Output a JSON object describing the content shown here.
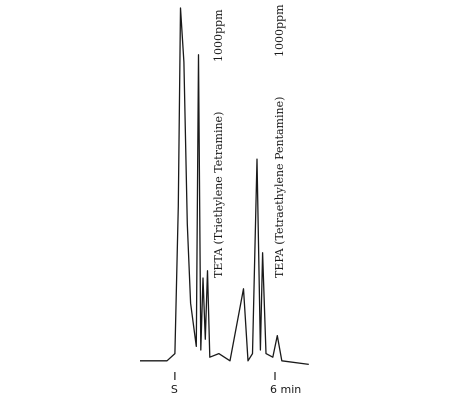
{
  "chart_data": {
    "type": "line",
    "title": "",
    "xlabel": "",
    "ylabel": "",
    "x_tick_labels": [
      "S",
      "6 min"
    ],
    "grid": false,
    "legend": "none",
    "annotations": [
      {
        "peak": "TETA",
        "text": "TETA (Triethylene Tetramine)",
        "concentration": "1000ppm"
      },
      {
        "peak": "TEPA",
        "text": "TEPA (Tetraethylene Pentamine)",
        "concentration": "1000ppm"
      }
    ],
    "series": [
      {
        "trace": [
          [
            0.0,
            0.02
          ],
          [
            1.2,
            0.02
          ],
          [
            1.55,
            0.04
          ],
          [
            1.7,
            0.45
          ],
          [
            1.8,
            1.0
          ],
          [
            1.95,
            0.85
          ],
          [
            2.1,
            0.4
          ],
          [
            2.25,
            0.18
          ],
          [
            2.5,
            0.06
          ],
          [
            2.6,
            0.87
          ],
          [
            2.7,
            0.05
          ],
          [
            2.8,
            0.25
          ],
          [
            2.9,
            0.08
          ],
          [
            3.0,
            0.27
          ],
          [
            3.1,
            0.03
          ],
          [
            3.5,
            0.04
          ],
          [
            4.0,
            0.02
          ],
          [
            4.6,
            0.22
          ],
          [
            4.8,
            0.02
          ],
          [
            5.0,
            0.04
          ],
          [
            5.2,
            0.58
          ],
          [
            5.35,
            0.05
          ],
          [
            5.45,
            0.32
          ],
          [
            5.6,
            0.04
          ],
          [
            5.9,
            0.03
          ],
          [
            6.1,
            0.09
          ],
          [
            6.3,
            0.02
          ],
          [
            7.5,
            0.01
          ]
        ]
      }
    ]
  }
}
